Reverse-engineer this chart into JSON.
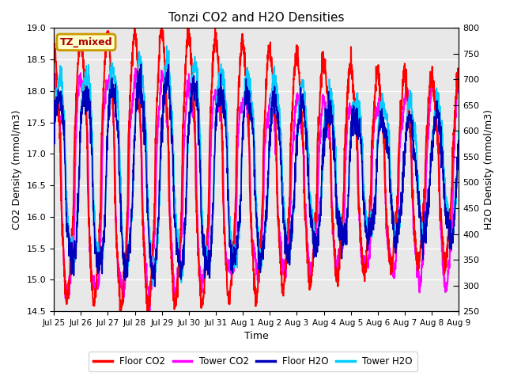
{
  "title": "Tonzi CO2 and H2O Densities",
  "xlabel": "Time",
  "ylabel_left": "CO2 Density (mmol/m3)",
  "ylabel_right": "H2O Density (mmol/m3)",
  "ylim_left": [
    14.5,
    19.0
  ],
  "ylim_right": [
    250,
    800
  ],
  "yticks_left": [
    14.5,
    15.0,
    15.5,
    16.0,
    16.5,
    17.0,
    17.5,
    18.0,
    18.5,
    19.0
  ],
  "yticks_right": [
    250,
    300,
    350,
    400,
    450,
    500,
    550,
    600,
    650,
    700,
    750,
    800
  ],
  "xtick_labels": [
    "Jul 25",
    "Jul 26",
    "Jul 27",
    "Jul 28",
    "Jul 29",
    "Jul 30",
    "Jul 31",
    "Aug 1",
    "Aug 2",
    "Aug 3",
    "Aug 4",
    "Aug 5",
    "Aug 6",
    "Aug 7",
    "Aug 8",
    "Aug 9"
  ],
  "annotation_text": "TZ_mixed",
  "annotation_color": "#aa0000",
  "annotation_bg": "#ffffcc",
  "annotation_edge": "#cc9900",
  "colors": {
    "floor_co2": "#ff0000",
    "tower_co2": "#ff00ff",
    "floor_h2o": "#0000bb",
    "tower_h2o": "#00ccff"
  },
  "legend_labels": [
    "Floor CO2",
    "Tower CO2",
    "Floor H2O",
    "Tower H2O"
  ],
  "n_days": 15,
  "n_points": 2160,
  "co2_floor_base": 16.75,
  "co2_floor_amp": 1.7,
  "co2_tower_base": 16.5,
  "co2_tower_amp": 1.5,
  "h2o_floor_base": 510,
  "h2o_floor_amp": 145,
  "h2o_tower_base": 530,
  "h2o_tower_amp": 160,
  "h2o_co2_phase_shift": 0.18,
  "background_color": "#e8e8e8",
  "plot_bg_alpha": 0.5,
  "linewidth_co2": 1.5,
  "linewidth_h2o": 1.2
}
